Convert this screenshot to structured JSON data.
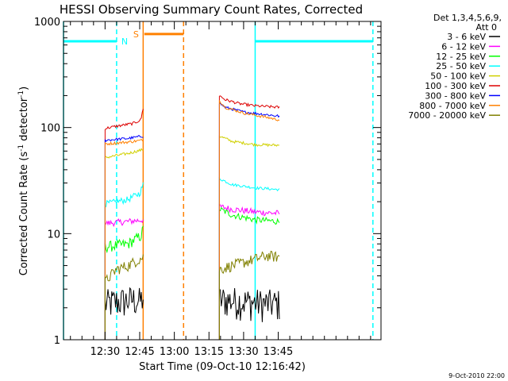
{
  "chart_data": {
    "type": "line",
    "title": "HESSI Observing Summary Count Rates, Corrected",
    "xlabel": "Start Time (09-Oct-10 12:16:42)",
    "ylabel": "Corrected Count Rate (s⁻¹ detector⁻¹)",
    "ylog": true,
    "xlim_minutes": [
      12.0,
      149.5
    ],
    "ylim": [
      1,
      1000
    ],
    "x_ticks": [
      "12:30",
      "12:45",
      "13:00",
      "13:15",
      "13:30",
      "13:45"
    ],
    "x_tick_minutes": [
      30,
      45,
      60,
      75,
      90,
      105
    ],
    "y_ticks": [
      "1",
      "10",
      "100",
      "1000"
    ],
    "y_tick_values": [
      1,
      10,
      100,
      1000
    ],
    "legend_header": [
      "Det 1,3,4,5,6,9,",
      "Att 0"
    ],
    "legend_position": "right",
    "timestamp": "9-Oct-2010 22:00",
    "markers": {
      "night_label": "N",
      "saa_label": "S",
      "night_color": "#00ffff",
      "saa_color": "#ff8000"
    },
    "series": [
      {
        "name": "3 - 6 keV",
        "color": "#000000",
        "segments": [
          {
            "t": [
              30.0,
              42.5,
              45.0,
              46.5
            ],
            "y": [
              2.2,
              2.4,
              2.3,
              2.5
            ]
          },
          {
            "t": [
              79.5,
              90.0,
              100.0,
              105.5
            ],
            "y": [
              2.4,
              2.3,
              2.2,
              2.2
            ]
          }
        ]
      },
      {
        "name": "6 - 12 keV",
        "color": "#ff00ff",
        "segments": [
          {
            "t": [
              30.0,
              40.0,
              46.5
            ],
            "y": [
              12.5,
              13.0,
              13.5
            ]
          },
          {
            "t": [
              79.5,
              85.0,
              95.0,
              105.5
            ],
            "y": [
              18.0,
              17.0,
              16.0,
              15.5
            ]
          }
        ]
      },
      {
        "name": "12 - 25 keV",
        "color": "#00ff00",
        "segments": [
          {
            "t": [
              30.0,
              40.0,
              45.5,
              46.5
            ],
            "y": [
              7.5,
              8.0,
              9.5,
              11.0
            ]
          },
          {
            "t": [
              79.5,
              85.0,
              95.0,
              105.5
            ],
            "y": [
              17.0,
              15.0,
              13.5,
              13.0
            ]
          }
        ]
      },
      {
        "name": "25 - 50 keV",
        "color": "#00ffff",
        "segments": [
          {
            "t": [
              30.0,
              40.0,
              45.0,
              46.5
            ],
            "y": [
              19.0,
              21.0,
              24.0,
              29.0
            ]
          },
          {
            "t": [
              79.5,
              85.0,
              95.0,
              105.5
            ],
            "y": [
              33.0,
              29.0,
              27.0,
              26.0
            ]
          }
        ]
      },
      {
        "name": "50 - 100 keV",
        "color": "#d0d000",
        "segments": [
          {
            "t": [
              30.0,
              40.0,
              46.5
            ],
            "y": [
              52.0,
              57.0,
              62.0
            ]
          },
          {
            "t": [
              79.5,
              85.0,
              95.0,
              105.5
            ],
            "y": [
              83.0,
              74.0,
              69.0,
              68.0
            ]
          }
        ]
      },
      {
        "name": "100 - 300 keV",
        "color": "#dd0000",
        "segments": [
          {
            "t": [
              30.0,
              35.0,
              42.0,
              45.5,
              46.5
            ],
            "y": [
              98.0,
              103.0,
              109.0,
              118.0,
              152.0
            ]
          },
          {
            "t": [
              79.5,
              82.0,
              88.0,
              95.0,
              105.5
            ],
            "y": [
              200.0,
              183.0,
              168.0,
              160.0,
              155.0
            ]
          }
        ]
      },
      {
        "name": "300 - 800 keV",
        "color": "#0000ff",
        "segments": [
          {
            "t": [
              30.0,
              40.0,
              46.5
            ],
            "y": [
              76.0,
              79.0,
              83.0
            ]
          },
          {
            "t": [
              79.5,
              82.0,
              90.0,
              105.5
            ],
            "y": [
              170.0,
              155.0,
              140.0,
              128.0
            ]
          }
        ]
      },
      {
        "name": "800 - 7000 keV",
        "color": "#ff8000",
        "segments": [
          {
            "t": [
              30.0,
              40.0,
              46.5
            ],
            "y": [
              70.0,
              73.0,
              76.0
            ]
          },
          {
            "t": [
              79.5,
              82.0,
              90.0,
              105.5
            ],
            "y": [
              180.0,
              155.0,
              137.0,
              118.0
            ]
          }
        ]
      },
      {
        "name": "7000 - 20000 keV",
        "color": "#808000",
        "segments": [
          {
            "t": [
              30.0,
              35.0,
              40.0,
              46.5
            ],
            "y": [
              3.5,
              4.6,
              5.0,
              6.0
            ]
          },
          {
            "t": [
              79.5,
              85.0,
              92.0,
              100.0,
              105.5
            ],
            "y": [
              4.6,
              5.0,
              5.5,
              6.2,
              6.0
            ]
          }
        ]
      }
    ],
    "night_segments": [
      {
        "t": [
          12.0,
          35.0
        ],
        "y": [
          650,
          650
        ]
      },
      {
        "t": [
          95.0,
          146.0
        ],
        "y": [
          650,
          650
        ]
      }
    ],
    "saa_segments": [
      {
        "t": [
          47.0,
          64.0
        ],
        "y": [
          760,
          760
        ]
      }
    ],
    "night_boundaries_solid": [
      12.0,
      95.0
    ],
    "night_boundaries_dashed": [
      35.0,
      146.0
    ],
    "saa_boundaries_solid": [
      46.5
    ],
    "saa_boundaries_dashed": [
      64.0
    ]
  }
}
